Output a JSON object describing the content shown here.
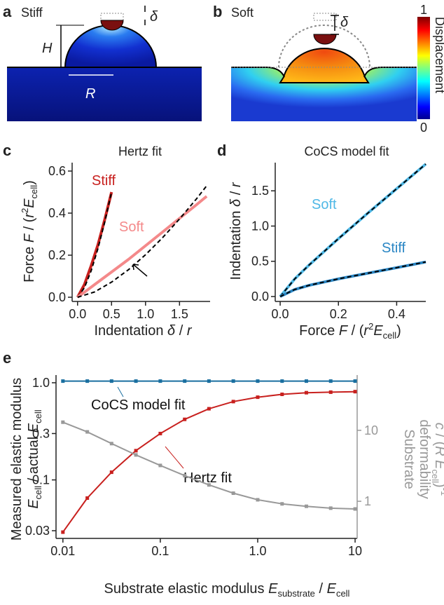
{
  "illustrations": {
    "a": {
      "panel": "a",
      "title": "Stiff",
      "height_label": "H",
      "radius_label": "R",
      "indent_label": "δ"
    },
    "b": {
      "panel": "b",
      "title": "Soft",
      "indent_label": "δ",
      "colorbar_label": "Displacement",
      "colorbar_ticks": [
        0,
        1
      ]
    }
  },
  "chart_data": [
    {
      "type": "line",
      "panel": "c",
      "title": "Hertz fit",
      "xlabel": [
        "Indentation ",
        "δ",
        " / ",
        "r"
      ],
      "ylabel": [
        "Force ",
        "F",
        " / (",
        "r",
        "2",
        "E",
        "cell",
        ")"
      ],
      "xlim": [
        -0.08,
        1.95
      ],
      "xticks": [
        {
          "value": 0,
          "label": "0.0"
        },
        0.5,
        {
          "value": 1,
          "label": "1.0"
        },
        1.5
      ],
      "ylim": [
        -0.02,
        0.64
      ],
      "yticks": [
        {
          "value": 0,
          "label": "0.0"
        },
        0.2,
        0.4,
        0.6
      ],
      "series": [
        {
          "name": "Stiff",
          "color": "#c8201e",
          "x": [
            0,
            0.1,
            0.2,
            0.3,
            0.4,
            0.5
          ],
          "values": [
            0,
            0.06,
            0.15,
            0.25,
            0.37,
            0.5
          ]
        },
        {
          "color": "#000000",
          "dash": true,
          "x": [
            0,
            0.1,
            0.2,
            0.3,
            0.4,
            0.5
          ],
          "values": [
            0,
            0.045,
            0.126,
            0.232,
            0.358,
            0.5
          ]
        },
        {
          "name": "Soft",
          "color": "#f4898a",
          "x": [
            0,
            0.25,
            0.5,
            0.75,
            1,
            1.25,
            1.5,
            1.75,
            1.9
          ],
          "values": [
            0,
            0.06,
            0.12,
            0.18,
            0.245,
            0.31,
            0.375,
            0.44,
            0.48
          ]
        },
        {
          "color": "#000000",
          "dash": true,
          "x": [
            0,
            0.25,
            0.5,
            0.75,
            1,
            1.25,
            1.5,
            1.75,
            1.9
          ],
          "values": [
            0,
            0.025,
            0.072,
            0.131,
            0.202,
            0.283,
            0.372,
            0.468,
            0.53
          ]
        }
      ]
    },
    {
      "type": "line",
      "panel": "d",
      "title": "CoCS model fit",
      "xlabel": [
        "Force ",
        "F",
        " / (",
        "r",
        "2",
        "E",
        "cell",
        ")"
      ],
      "ylabel": [
        "Indentation ",
        "δ",
        " / ",
        "r"
      ],
      "xlim": [
        -0.017,
        0.5
      ],
      "xticks": [
        {
          "value": 0,
          "label": "0.0"
        },
        0.2,
        0.4
      ],
      "ylim": [
        -0.07,
        1.9
      ],
      "yticks": [
        {
          "value": 0,
          "label": "0.0"
        },
        0.5,
        {
          "value": 1,
          "label": "1.0"
        },
        1.5
      ],
      "series": [
        {
          "name": "Soft",
          "color": "#4fb8e6",
          "x": [
            0,
            0.05,
            0.1,
            0.2,
            0.3,
            0.4,
            0.5
          ],
          "values": [
            0,
            0.25,
            0.45,
            0.82,
            1.18,
            1.53,
            1.88
          ]
        },
        {
          "color": "#000000",
          "dash": true,
          "x": [
            0,
            0.05,
            0.1,
            0.2,
            0.3,
            0.4,
            0.5
          ],
          "values": [
            0,
            0.25,
            0.45,
            0.82,
            1.18,
            1.53,
            1.88
          ]
        },
        {
          "name": "Stiff",
          "color": "#2a86c4",
          "x": [
            0,
            0.05,
            0.1,
            0.2,
            0.3,
            0.4,
            0.5
          ],
          "values": [
            0,
            0.1,
            0.16,
            0.25,
            0.33,
            0.41,
            0.49
          ]
        },
        {
          "color": "#000000",
          "dash": true,
          "x": [
            0,
            0.05,
            0.1,
            0.2,
            0.3,
            0.4,
            0.5
          ],
          "values": [
            0,
            0.1,
            0.16,
            0.25,
            0.33,
            0.41,
            0.49
          ]
        }
      ]
    },
    {
      "type": "line",
      "panel": "e",
      "log_x": true,
      "log_y": true,
      "log_y2": true,
      "xlabel": [
        "Substrate elastic modulus ",
        "E",
        "substrate",
        " / ",
        "E",
        "cell"
      ],
      "ylabel": [
        "Measured elastic modulus",
        "E",
        "cell",
        " / actual ",
        "E",
        "cell"
      ],
      "y2label": [
        "Substrate",
        "deformability",
        "c",
        " / (",
        "R E",
        "cell",
        ")",
        "-1"
      ],
      "xlim": [
        0.0085,
        10.5
      ],
      "xticks": [
        0.01,
        0.1,
        {
          "value": 1,
          "label": "1.0"
        },
        10
      ],
      "ylim": [
        0.025,
        1.2
      ],
      "yticks": [
        {
          "value": 1,
          "label": "1.0"
        },
        0.3,
        0.1,
        0.03
      ],
      "y2lim": [
        0.3,
        60
      ],
      "y2ticks": [
        1,
        10
      ],
      "y2color": "#999999",
      "series": [
        {
          "name": "CoCS model fit",
          "color": "#1a6fa0",
          "markers": true,
          "x": [
            0.01,
            0.0178,
            0.0316,
            0.0562,
            0.1,
            0.178,
            0.316,
            0.562,
            1,
            1.78,
            3.16,
            5.62,
            10
          ],
          "values": [
            1.04,
            1.04,
            1.04,
            1.04,
            1.04,
            1.04,
            1.04,
            1.04,
            1.04,
            1.04,
            1.04,
            1.04,
            1.04
          ]
        },
        {
          "name": "Hertz fit",
          "color": "#c8201e",
          "markers": true,
          "x": [
            0.01,
            0.0178,
            0.0316,
            0.0562,
            0.1,
            0.178,
            0.316,
            0.562,
            1,
            1.78,
            3.16,
            5.62,
            10
          ],
          "values": [
            0.029,
            0.065,
            0.12,
            0.2,
            0.3,
            0.42,
            0.54,
            0.64,
            0.71,
            0.76,
            0.79,
            0.8,
            0.81
          ]
        },
        {
          "color": "#999999",
          "axis": "y2",
          "markers": true,
          "x": [
            0.01,
            0.0178,
            0.0316,
            0.0562,
            0.1,
            0.178,
            0.316,
            0.562,
            1,
            1.78,
            3.16,
            5.62,
            10
          ],
          "values": [
            13,
            9.5,
            6.5,
            4.5,
            3.2,
            2.3,
            1.7,
            1.3,
            1.05,
            0.92,
            0.85,
            0.8,
            0.78
          ]
        }
      ]
    }
  ]
}
